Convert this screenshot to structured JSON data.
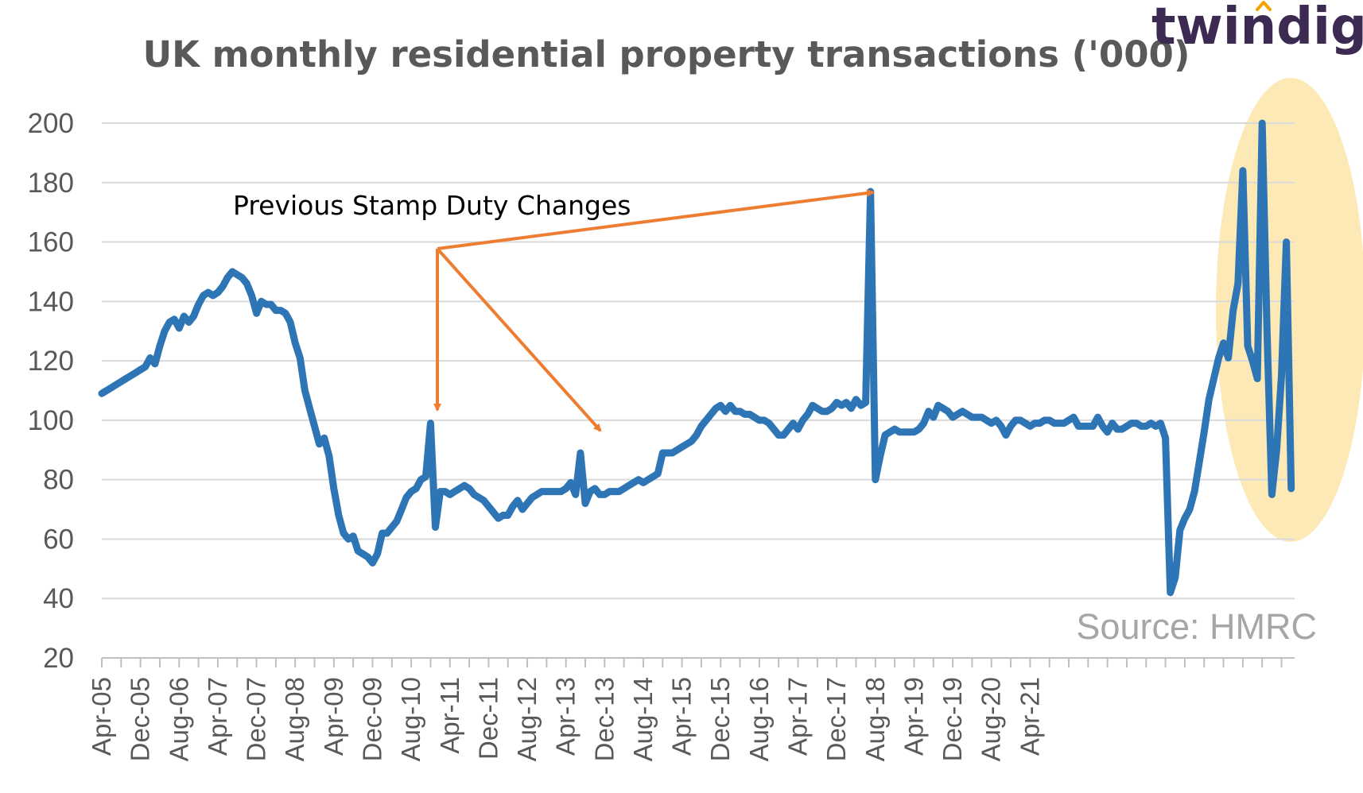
{
  "logo": {
    "text": "twindig",
    "accent_color": "#f4a300"
  },
  "source_note": "Source: HMRC",
  "annotation": {
    "text": "Previous Stamp Duty Changes",
    "color": "#ed7d31"
  },
  "colors": {
    "line": "#2e75b6",
    "grid": "#d9d9d9",
    "highlight": "#fde9b6",
    "text": "#595959"
  },
  "chart_data": {
    "type": "line",
    "title": "UK monthly residential property transactions ('000)",
    "xlabel": "",
    "ylabel": "",
    "ylim": [
      20,
      200
    ],
    "yticks": [
      20,
      40,
      60,
      80,
      100,
      120,
      140,
      160,
      180,
      200
    ],
    "grid": true,
    "x_tick_labels": [
      "Apr-05",
      "Dec-05",
      "Aug-06",
      "Apr-07",
      "Dec-07",
      "Aug-08",
      "Apr-09",
      "Dec-09",
      "Aug-10",
      "Apr-11",
      "Dec-11",
      "Aug-12",
      "Apr-13",
      "Dec-13",
      "Aug-14",
      "Apr-15",
      "Dec-15",
      "Aug-16",
      "Apr-17",
      "Dec-17",
      "Aug-18",
      "Apr-19",
      "Dec-19",
      "Aug-20",
      "Apr-21"
    ],
    "start_month": "Apr-05",
    "series": [
      {
        "values": [
          109,
          110,
          111,
          112,
          113,
          114,
          115,
          116,
          117,
          118,
          121,
          119,
          125,
          130,
          133,
          134,
          131,
          135,
          133,
          135,
          139,
          142,
          143,
          142,
          143,
          145,
          148,
          150,
          149,
          148,
          146,
          142,
          136,
          140,
          139,
          139,
          137,
          137,
          136,
          133,
          126,
          121,
          110,
          104,
          98,
          92,
          94,
          88,
          77,
          68,
          62,
          60,
          61,
          56,
          55,
          54,
          52,
          55,
          62,
          62,
          64,
          66,
          70,
          74,
          76,
          77,
          80,
          81,
          99,
          64,
          76,
          76,
          75,
          76,
          77,
          78,
          77,
          75,
          74,
          73,
          71,
          69,
          67,
          68,
          68,
          71,
          73,
          70,
          72,
          74,
          75,
          76,
          76,
          76,
          76,
          76,
          77,
          79,
          75,
          89,
          72,
          76,
          77,
          75,
          75,
          76,
          76,
          76,
          77,
          78,
          79,
          80,
          79,
          80,
          81,
          82,
          89,
          89,
          89,
          90,
          91,
          92,
          93,
          95,
          98,
          100,
          102,
          104,
          105,
          103,
          105,
          103,
          103,
          102,
          102,
          101,
          100,
          100,
          99,
          97,
          95,
          95,
          97,
          99,
          97,
          100,
          102,
          105,
          104,
          103,
          103,
          104,
          106,
          105,
          106,
          104,
          107,
          105,
          106,
          177,
          80,
          88,
          95,
          96,
          97,
          96,
          96,
          96,
          96,
          97,
          99,
          103,
          101,
          105,
          104,
          103,
          101,
          102,
          103,
          102,
          101,
          101,
          101,
          100,
          99,
          100,
          98,
          95,
          98,
          100,
          100,
          99,
          98,
          99,
          99,
          100,
          100,
          99,
          99,
          99,
          100,
          101,
          98,
          98,
          98,
          98,
          101,
          98,
          96,
          99,
          97,
          97,
          98,
          99,
          99,
          98,
          98,
          99,
          98,
          99,
          94,
          42,
          47,
          63,
          67,
          70,
          76,
          86,
          96,
          107,
          114,
          121,
          126,
          121,
          137,
          146,
          184,
          125,
          120,
          114,
          200,
          130,
          75,
          90,
          115,
          160,
          77
        ]
      }
    ]
  }
}
